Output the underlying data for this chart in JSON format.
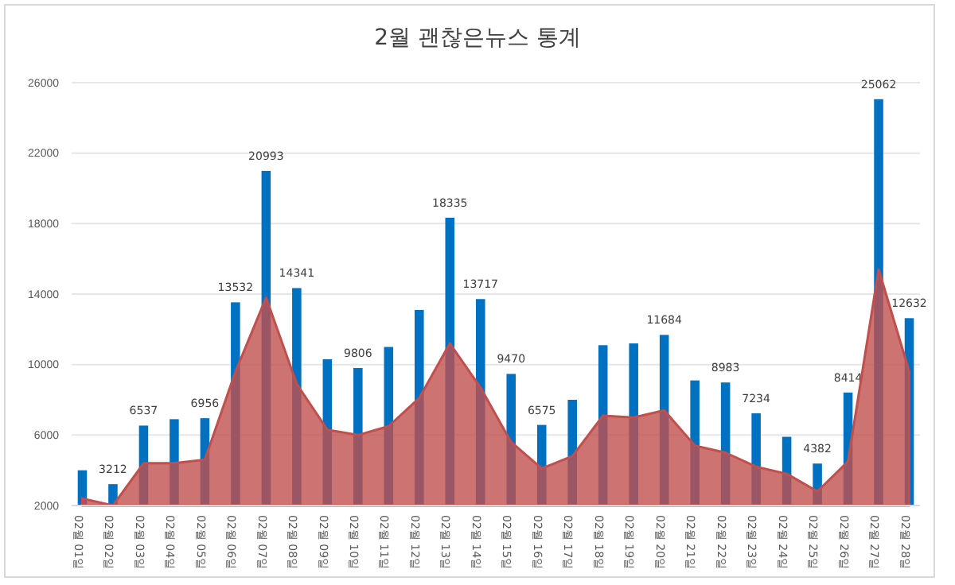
{
  "chart_data": {
    "type": "bar",
    "title": "2월 괜찮은뉴스 통계",
    "categories": [
      "02월 01일",
      "02월 02일",
      "02월 03일",
      "02월 04일",
      "02월 05일",
      "02월 06일",
      "02월 07일",
      "02월 08일",
      "02월 09일",
      "02월 10일",
      "02월 11일",
      "02월 12일",
      "02월 13일",
      "02월 14일",
      "02월 15일",
      "02월 16일",
      "02월 17일",
      "02월 18일",
      "02월 19일",
      "02월 20일",
      "02월 21일",
      "02월 22일",
      "02월 23일",
      "02월 24일",
      "02월 25일",
      "02월 26일",
      "02월 27일",
      "02월 28일"
    ],
    "series": [
      {
        "type": "area",
        "color": "#c0504d",
        "values": [
          2400,
          2000,
          4400,
          4400,
          4600,
          9600,
          13800,
          8900,
          6300,
          6000,
          6500,
          8100,
          11200,
          8700,
          5600,
          4100,
          4800,
          7100,
          7000,
          7400,
          5400,
          5000,
          4200,
          3800,
          2800,
          4500,
          15400,
          9600
        ]
      },
      {
        "color": "#0070c0",
        "values": [
          4000,
          3212,
          6537,
          6900,
          6956,
          13532,
          20993,
          14341,
          10300,
          9806,
          11000,
          13100,
          18335,
          13717,
          9470,
          6575,
          8000,
          11100,
          11200,
          11684,
          9100,
          8983,
          7234,
          5900,
          4382,
          8414,
          25062,
          12632
        ],
        "value_labels": [
          null,
          "3212",
          "6537",
          null,
          "6956",
          "13532",
          "20993",
          "14341",
          null,
          "9806",
          null,
          null,
          "18335",
          "13717",
          "9470",
          "6575",
          null,
          null,
          null,
          "11684",
          null,
          "8983",
          "7234",
          null,
          "4382",
          "8414",
          "25062",
          "12632"
        ]
      }
    ],
    "ylim": [
      2000,
      26000
    ],
    "yticks": [
      2000,
      6000,
      10000,
      14000,
      18000,
      22000,
      26000
    ],
    "grid": "y"
  }
}
